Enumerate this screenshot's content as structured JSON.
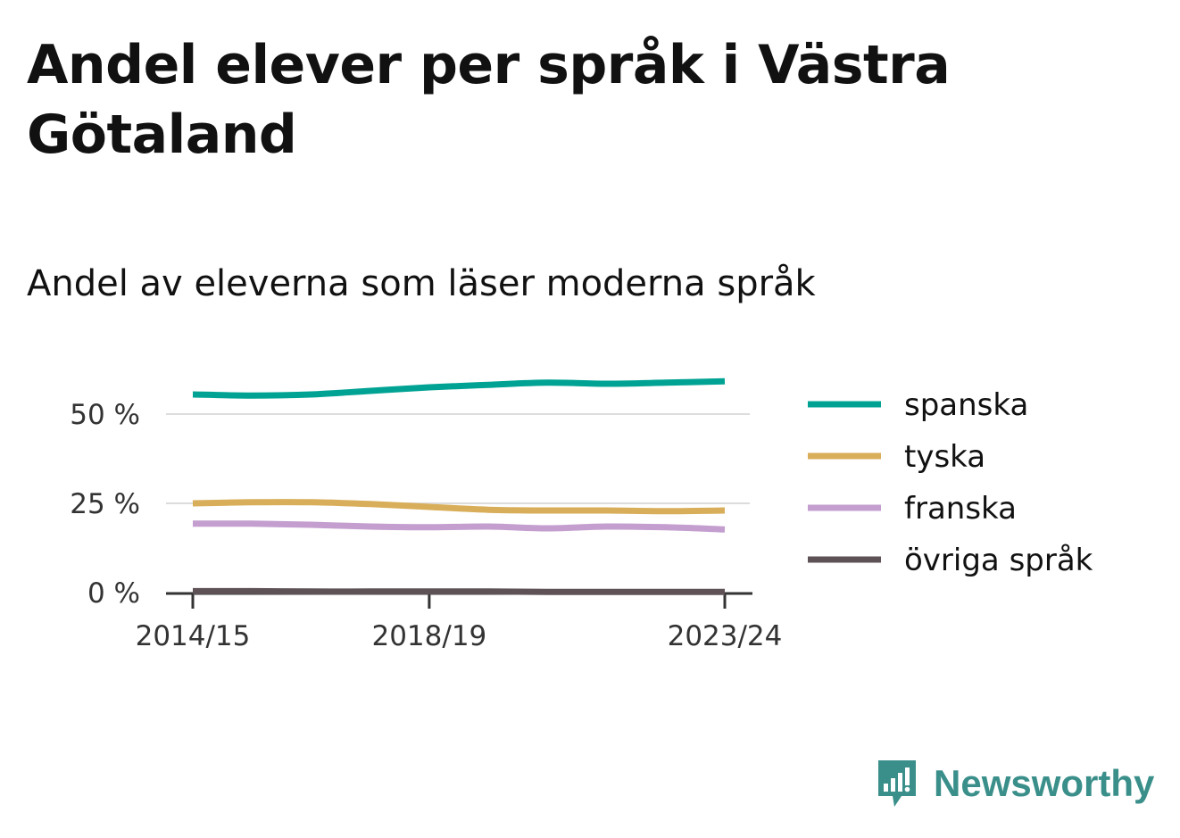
{
  "title": "Andel elever per språk i Västra Götaland",
  "subtitle": "Andel av eleverna som läser moderna språk",
  "brand": {
    "name": "Newsworthy",
    "color": "#3a8f8a",
    "icon": "bar-chart-speech-bubble-icon"
  },
  "chart_data": {
    "type": "line",
    "x": [
      "2014/15",
      "2015/16",
      "2016/17",
      "2017/18",
      "2018/19",
      "2019/20",
      "2020/21",
      "2021/22",
      "2022/23",
      "2023/24"
    ],
    "x_tick_labels": [
      "2014/15",
      "2018/19",
      "2023/24"
    ],
    "y_ticks": [
      0,
      25,
      50
    ],
    "y_tick_labels": [
      "0 %",
      "25 %",
      "50 %"
    ],
    "ylim": [
      0,
      60
    ],
    "grid": true,
    "legend_position": "right",
    "series": [
      {
        "name": "spanska",
        "color": "#00a393",
        "values": [
          55.5,
          55.2,
          55.5,
          56.5,
          57.5,
          58.2,
          58.8,
          58.5,
          58.8,
          59.2
        ]
      },
      {
        "name": "tyska",
        "color": "#d9ae5a",
        "values": [
          25.0,
          25.3,
          25.3,
          24.8,
          24.0,
          23.2,
          23.0,
          23.0,
          22.8,
          23.0
        ]
      },
      {
        "name": "franska",
        "color": "#c39ecf",
        "values": [
          19.3,
          19.3,
          19.0,
          18.5,
          18.3,
          18.5,
          18.0,
          18.5,
          18.3,
          17.7
        ]
      },
      {
        "name": "övriga språk",
        "color": "#5e5257",
        "values": [
          0.4,
          0.4,
          0.3,
          0.3,
          0.3,
          0.3,
          0.2,
          0.2,
          0.2,
          0.2
        ]
      }
    ]
  }
}
